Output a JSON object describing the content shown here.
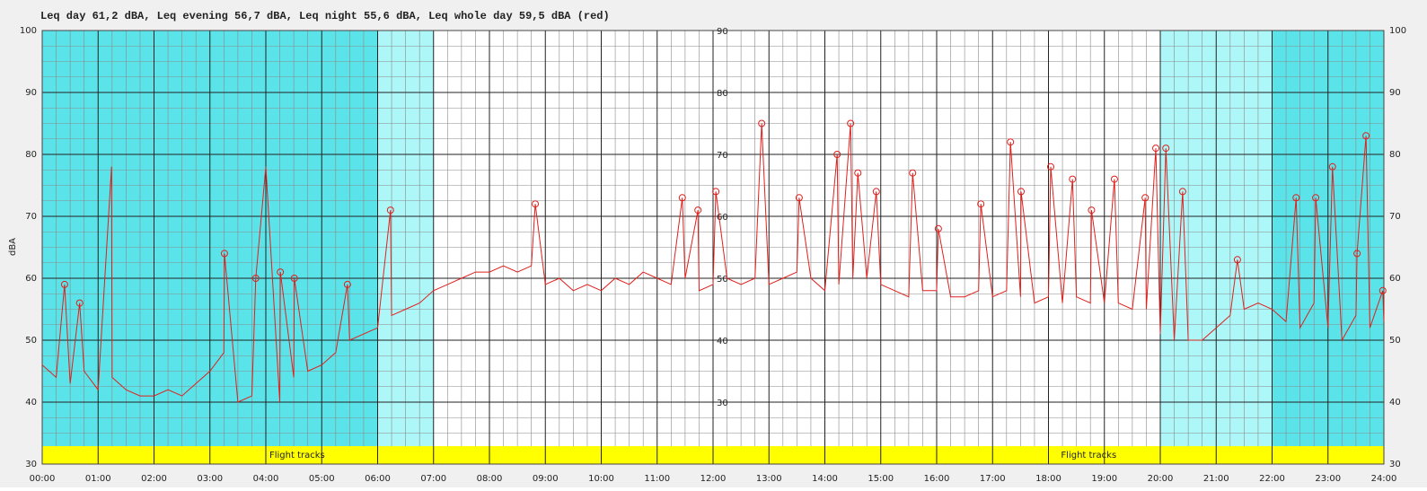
{
  "chart_data": {
    "type": "line",
    "title": "Leq day 61,2 dBA, Leq evening 56,7 dBA, Leq night 55,6 dBA, Leq whole day 59,5 dBA (red)",
    "y_label": "dBA",
    "xlim": [
      0,
      24
    ],
    "ylim": [
      30,
      100
    ],
    "yticks": [
      30,
      40,
      50,
      60,
      70,
      80,
      90,
      100
    ],
    "xticks": [
      {
        "value": 0,
        "label": "00:00"
      },
      {
        "value": 1,
        "label": "01:00"
      },
      {
        "value": 2,
        "label": "02:00"
      },
      {
        "value": 3,
        "label": "03:00"
      },
      {
        "value": 4,
        "label": "04:00"
      },
      {
        "value": 5,
        "label": "05:00"
      },
      {
        "value": 6,
        "label": "06:00"
      },
      {
        "value": 7,
        "label": "07:00"
      },
      {
        "value": 8,
        "label": "08:00"
      },
      {
        "value": 9,
        "label": "09:00"
      },
      {
        "value": 10,
        "label": "10:00"
      },
      {
        "value": 11,
        "label": "11:00"
      },
      {
        "value": 12,
        "label": "12:00"
      },
      {
        "value": 13,
        "label": "13:00"
      },
      {
        "value": 14,
        "label": "14:00"
      },
      {
        "value": 15,
        "label": "15:00"
      },
      {
        "value": 16,
        "label": "16:00"
      },
      {
        "value": 17,
        "label": "17:00"
      },
      {
        "value": 18,
        "label": "18:00"
      },
      {
        "value": 19,
        "label": "19:00"
      },
      {
        "value": 20,
        "label": "20:00"
      },
      {
        "value": 21,
        "label": "21:00"
      },
      {
        "value": 22,
        "label": "22:00"
      },
      {
        "value": 23,
        "label": "23:00"
      },
      {
        "value": 24,
        "label": "24:00"
      }
    ],
    "grid": true,
    "bands": [
      {
        "from": 0,
        "to": 6,
        "color": "#5ae4ea"
      },
      {
        "from": 6,
        "to": 7,
        "color": "#adf7f8"
      },
      {
        "from": 20,
        "to": 22,
        "color": "#adf7f8"
      },
      {
        "from": 22,
        "to": 24,
        "color": "#5ae4ea"
      }
    ],
    "flight_tracks": {
      "label": "Flight tracks",
      "color": "#ffff00"
    },
    "series": [
      {
        "color": "#e0201c",
        "x": [
          0,
          0.25,
          0.4,
          0.5,
          0.67,
          0.75,
          1,
          1.24,
          1.25,
          1.5,
          1.75,
          2,
          2.25,
          2.5,
          2.75,
          3,
          3.25,
          3.26,
          3.5,
          3.75,
          3.82,
          4,
          4.25,
          4.26,
          4.5,
          4.51,
          4.75,
          5,
          5.25,
          5.46,
          5.5,
          5.75,
          6,
          6.23,
          6.25,
          6.5,
          6.75,
          7,
          7.25,
          7.5,
          7.75,
          8,
          8.25,
          8.5,
          8.75,
          8.82,
          9,
          9.25,
          9.5,
          9.75,
          10,
          10.25,
          10.5,
          10.75,
          11,
          11.25,
          11.45,
          11.5,
          11.73,
          11.75,
          12,
          12.05,
          12.25,
          12.5,
          12.75,
          12.87,
          13,
          13.25,
          13.5,
          13.54,
          13.75,
          14,
          14.22,
          14.25,
          14.46,
          14.5,
          14.59,
          14.75,
          14.92,
          15,
          15.25,
          15.5,
          15.57,
          15.75,
          16,
          16.03,
          16.25,
          16.5,
          16.75,
          16.79,
          17,
          17.25,
          17.32,
          17.5,
          17.51,
          17.75,
          18,
          18.04,
          18.25,
          18.43,
          18.5,
          18.75,
          18.77,
          19,
          19.18,
          19.25,
          19.5,
          19.73,
          19.75,
          19.92,
          20,
          20.1,
          20.25,
          20.4,
          20.5,
          20.75,
          21,
          21.25,
          21.38,
          21.5,
          21.75,
          22,
          22.25,
          22.43,
          22.5,
          22.75,
          22.78,
          23,
          23.08,
          23.25,
          23.5,
          23.52,
          23.68,
          23.75,
          23.98,
          24
        ],
        "values": [
          46,
          44,
          59,
          43,
          56,
          45,
          42,
          78,
          44,
          42,
          41,
          41,
          42,
          41,
          43,
          45,
          48,
          64,
          40,
          41,
          60,
          78,
          40,
          61,
          44,
          60,
          45,
          46,
          48,
          59,
          50,
          51,
          52,
          71,
          54,
          55,
          56,
          58,
          59,
          60,
          61,
          61,
          62,
          61,
          62,
          72,
          59,
          60,
          58,
          59,
          58,
          60,
          59,
          61,
          60,
          59,
          73,
          60,
          71,
          58,
          59,
          74,
          60,
          59,
          60,
          85,
          59,
          60,
          61,
          73,
          60,
          58,
          80,
          59,
          85,
          60,
          77,
          60,
          74,
          59,
          58,
          57,
          77,
          58,
          58,
          68,
          57,
          57,
          58,
          72,
          57,
          58,
          82,
          57,
          74,
          56,
          57,
          78,
          56,
          76,
          57,
          56,
          71,
          56,
          76,
          56,
          55,
          73,
          55,
          81,
          51,
          81,
          50,
          74,
          50,
          50,
          52,
          54,
          63,
          55,
          56,
          55,
          53,
          73,
          52,
          56,
          73,
          52,
          78,
          50,
          54,
          64,
          83,
          52,
          58,
          53
        ]
      },
      {
        "color": "#e0201c",
        "x": [
          0.4,
          0.67,
          3.26,
          3.82,
          4.26,
          4.51,
          5.46,
          6.23,
          8.82,
          11.45,
          11.73,
          12.05,
          12.87,
          13.54,
          14.22,
          14.46,
          14.59,
          14.92,
          15.57,
          16.03,
          16.79,
          17.32,
          17.51,
          18.04,
          18.43,
          18.77,
          19.18,
          19.73,
          19.92,
          20.1,
          20.4,
          21.38,
          22.43,
          22.78,
          23.08,
          23.52,
          23.68,
          23.98
        ],
        "values": [
          59,
          56,
          64,
          60,
          61,
          60,
          59,
          71,
          72,
          73,
          71,
          74,
          85,
          73,
          80,
          85,
          77,
          74,
          77,
          68,
          72,
          82,
          74,
          78,
          76,
          71,
          76,
          73,
          81,
          81,
          74,
          63,
          73,
          73,
          78,
          64,
          83,
          58
        ]
      }
    ]
  }
}
